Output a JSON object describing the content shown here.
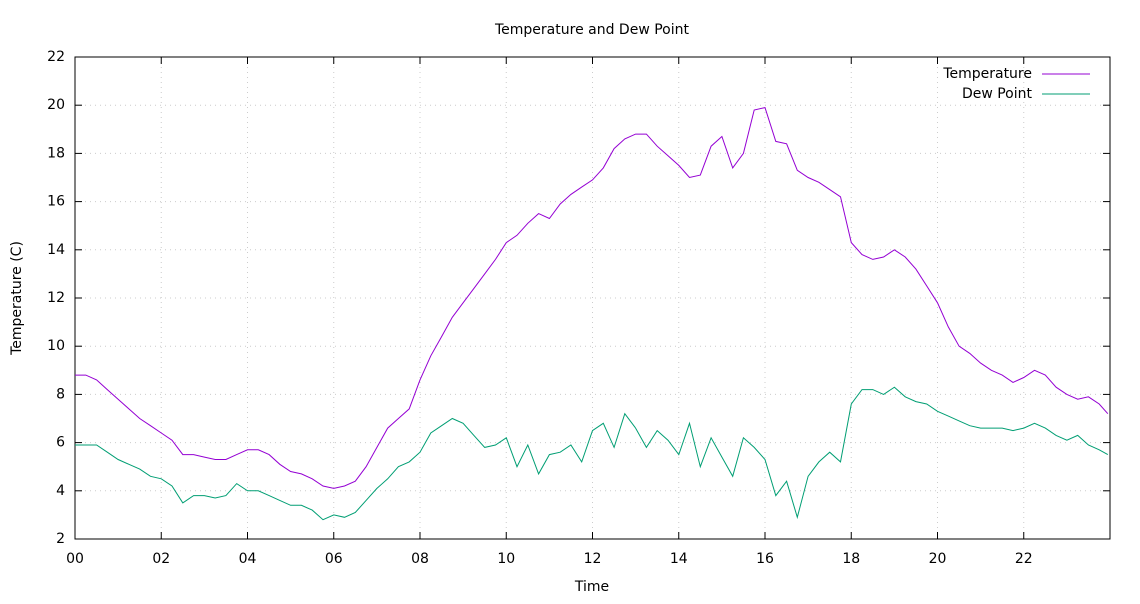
{
  "chart_data": {
    "type": "line",
    "title": "Temperature and Dew Point",
    "xlabel": "Time",
    "ylabel": "Temperature (C)",
    "x": [
      0,
      0.25,
      0.5,
      0.75,
      1,
      1.25,
      1.5,
      1.75,
      2,
      2.25,
      2.5,
      2.75,
      3,
      3.25,
      3.5,
      3.75,
      4,
      4.25,
      4.5,
      4.75,
      5,
      5.25,
      5.5,
      5.75,
      6,
      6.25,
      6.5,
      6.75,
      7,
      7.25,
      7.5,
      7.75,
      8,
      8.25,
      8.5,
      8.75,
      9,
      9.25,
      9.5,
      9.75,
      10,
      10.25,
      10.5,
      10.75,
      11,
      11.25,
      11.5,
      11.75,
      12,
      12.25,
      12.5,
      12.75,
      13,
      13.25,
      13.5,
      13.75,
      14,
      14.25,
      14.5,
      14.75,
      15,
      15.25,
      15.5,
      15.75,
      16,
      16.25,
      16.5,
      16.75,
      17,
      17.25,
      17.5,
      17.75,
      18,
      18.25,
      18.5,
      18.75,
      19,
      19.25,
      19.5,
      19.75,
      20,
      20.25,
      20.5,
      20.75,
      21,
      21.25,
      21.5,
      21.75,
      22,
      22.25,
      22.5,
      22.75,
      23,
      23.25,
      23.5,
      23.75,
      23.95
    ],
    "series": [
      {
        "name": "Temperature",
        "color": "#9400d3",
        "values": [
          8.8,
          8.8,
          8.6,
          8.2,
          7.8,
          7.4,
          7.0,
          6.7,
          6.4,
          6.1,
          5.5,
          5.5,
          5.4,
          5.3,
          5.3,
          5.5,
          5.7,
          5.7,
          5.5,
          5.1,
          4.8,
          4.7,
          4.5,
          4.2,
          4.1,
          4.2,
          4.4,
          5.0,
          5.8,
          6.6,
          7.0,
          7.4,
          8.6,
          9.6,
          10.4,
          11.2,
          11.8,
          12.4,
          13.0,
          13.6,
          14.3,
          14.6,
          15.1,
          15.5,
          15.3,
          15.9,
          16.3,
          16.6,
          16.9,
          17.4,
          18.2,
          18.6,
          18.8,
          18.8,
          18.3,
          17.9,
          17.5,
          17.0,
          17.1,
          18.3,
          18.7,
          17.4,
          18.0,
          19.8,
          19.9,
          18.5,
          18.4,
          17.3,
          17.0,
          16.8,
          16.5,
          16.2,
          14.3,
          13.8,
          13.6,
          13.7,
          14.0,
          13.7,
          13.2,
          12.5,
          11.8,
          10.8,
          10.0,
          9.7,
          9.3,
          9.0,
          8.8,
          8.5,
          8.7,
          9.0,
          8.8,
          8.3,
          8.0,
          7.8,
          7.9,
          7.6,
          7.2
        ]
      },
      {
        "name": "Dew Point",
        "color": "#009e73",
        "values": [
          5.9,
          5.9,
          5.9,
          5.6,
          5.3,
          5.1,
          4.9,
          4.6,
          4.5,
          4.2,
          3.5,
          3.8,
          3.8,
          3.7,
          3.8,
          4.3,
          4.0,
          4.0,
          3.8,
          3.6,
          3.4,
          3.4,
          3.2,
          2.8,
          3.0,
          2.9,
          3.1,
          3.6,
          4.1,
          4.5,
          5.0,
          5.2,
          5.6,
          6.4,
          6.7,
          7.0,
          6.8,
          6.3,
          5.8,
          5.9,
          6.2,
          5.0,
          5.9,
          4.7,
          5.5,
          5.6,
          5.9,
          5.2,
          6.5,
          6.8,
          5.8,
          7.2,
          6.6,
          5.8,
          6.5,
          6.1,
          5.5,
          6.8,
          5.0,
          6.2,
          5.4,
          4.6,
          6.2,
          5.8,
          5.3,
          3.8,
          4.4,
          2.9,
          4.6,
          5.2,
          5.6,
          5.2,
          7.6,
          8.2,
          8.2,
          8.0,
          8.3,
          7.9,
          7.7,
          7.6,
          7.3,
          7.1,
          6.9,
          6.7,
          6.6,
          6.6,
          6.6,
          6.5,
          6.6,
          6.8,
          6.6,
          6.3,
          6.1,
          6.3,
          5.9,
          5.7,
          5.5
        ]
      }
    ],
    "xlim": [
      0,
      24
    ],
    "xticks": [
      {
        "value": 0,
        "label": "00"
      },
      {
        "value": 2,
        "label": "02"
      },
      {
        "value": 4,
        "label": "04"
      },
      {
        "value": 6,
        "label": "06"
      },
      {
        "value": 8,
        "label": "08"
      },
      10,
      12,
      14,
      16,
      18,
      20,
      22
    ],
    "ylim": [
      2,
      22
    ],
    "yticks": [
      2,
      4,
      6,
      8,
      10,
      12,
      14,
      16,
      18,
      20,
      22
    ],
    "grid": true,
    "legend": "top-right"
  }
}
